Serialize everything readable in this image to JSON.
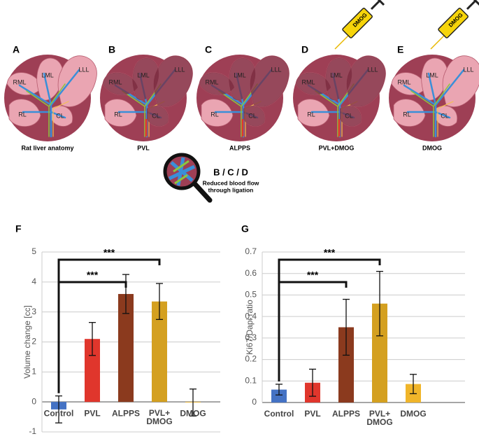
{
  "panels": [
    {
      "letter": "A",
      "caption": "Rat liver anatomy",
      "lobes": [
        "RML",
        "LML",
        "LLL",
        "RL",
        "CL"
      ]
    },
    {
      "letter": "B",
      "caption": "PVL",
      "lobes": [
        "RML",
        "LML",
        "LLL",
        "RL",
        "CL"
      ]
    },
    {
      "letter": "C",
      "caption": "ALPPS",
      "lobes": [
        "RML",
        "LML",
        "LLL",
        "RL",
        "CL"
      ]
    },
    {
      "letter": "D",
      "caption": "PVL+DMOG",
      "lobes": [
        "RML",
        "LML",
        "LLL",
        "RL",
        "CL"
      ],
      "syringe": "DMOG"
    },
    {
      "letter": "E",
      "caption": "DMOG",
      "lobes": [
        "RML",
        "LML",
        "LLL",
        "RL",
        "CL"
      ],
      "syringe": "DMOG"
    }
  ],
  "inset": {
    "title": "B / C / D",
    "text": [
      "Reduced blood flow",
      "through ligation"
    ]
  },
  "chart_data": [
    {
      "type": "bar",
      "panel": "F",
      "y_label": "Volume change [cc]",
      "categories": [
        "Control",
        "PVL",
        "ALPPS",
        "PVL+ DMOG",
        "DMOG"
      ],
      "values": [
        -0.25,
        2.1,
        3.6,
        3.35,
        -0.02
      ],
      "errors": [
        0.45,
        0.55,
        0.65,
        0.6,
        0.45
      ],
      "colors": [
        "#4472c4",
        "#e0362c",
        "#8b3a1e",
        "#d4a020",
        "#f0b52a"
      ],
      "ylim": [
        -1,
        5
      ],
      "yticks": [
        -1,
        0,
        1,
        2,
        3,
        4,
        5
      ],
      "grid": true,
      "brackets": [
        {
          "label": "***",
          "span": [
            0,
            2
          ]
        },
        {
          "label": "***",
          "span": [
            0,
            3
          ]
        }
      ]
    },
    {
      "type": "bar",
      "panel": "G",
      "y_label": "Ki67/Dapi ratio",
      "categories": [
        "Control",
        "PVL",
        "ALPPS",
        "PVL+ DMOG",
        "DMOG"
      ],
      "values": [
        0.06,
        0.092,
        0.35,
        0.46,
        0.086
      ],
      "errors": [
        0.025,
        0.063,
        0.13,
        0.15,
        0.045
      ],
      "colors": [
        "#4472c4",
        "#e0362c",
        "#8b3a1e",
        "#d4a020",
        "#f0b52a"
      ],
      "ylim": [
        0,
        0.7
      ],
      "yticks": [
        0,
        0.1,
        0.2,
        0.3,
        0.4,
        0.5,
        0.6,
        0.7
      ],
      "grid": true,
      "brackets": [
        {
          "label": "***",
          "span": [
            0,
            2
          ]
        },
        {
          "label": "***",
          "span": [
            0,
            3
          ]
        }
      ]
    }
  ]
}
